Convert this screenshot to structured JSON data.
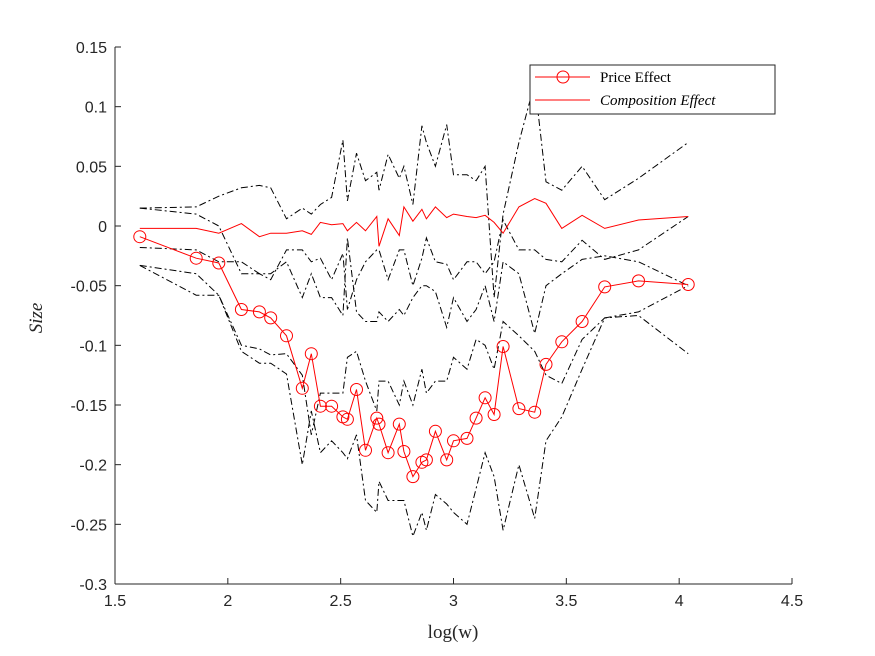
{
  "chart_data": {
    "type": "line",
    "xlabel": "log(w)",
    "ylabel": "Size",
    "xlim": [
      1.5,
      4.5
    ],
    "ylim": [
      -0.3,
      0.15
    ],
    "xticks": [
      1.5,
      2,
      2.5,
      3,
      3.5,
      4,
      4.5
    ],
    "yticks": [
      -0.3,
      -0.25,
      -0.2,
      -0.15,
      -0.1,
      -0.05,
      0,
      0.05,
      0.1,
      0.15
    ],
    "xtick_labels": [
      "1.5",
      "2",
      "2.5",
      "3",
      "3.5",
      "4",
      "4.5"
    ],
    "ytick_labels": [
      "-0.3",
      "-0.25",
      "-0.2",
      "-0.15",
      "-0.1",
      "-0.05",
      "0",
      "0.05",
      "0.1",
      "0.15"
    ],
    "grid": false,
    "legend_position": "top-right",
    "x": [
      1.61,
      1.86,
      1.96,
      2.06,
      2.14,
      2.19,
      2.26,
      2.33,
      2.37,
      2.41,
      2.46,
      2.51,
      2.53,
      2.57,
      2.61,
      2.66,
      2.67,
      2.71,
      2.76,
      2.78,
      2.82,
      2.86,
      2.88,
      2.92,
      2.97,
      3.0,
      3.06,
      3.1,
      3.14,
      3.18,
      3.22,
      3.29,
      3.36,
      3.41,
      3.48,
      3.57,
      3.67,
      3.82,
      4.04
    ],
    "series": [
      {
        "name": "Price Effect",
        "color": "#ff0000",
        "marker": "circle",
        "values": [
          -0.009,
          -0.027,
          -0.031,
          -0.07,
          -0.072,
          -0.077,
          -0.092,
          -0.136,
          -0.107,
          -0.151,
          -0.151,
          -0.16,
          -0.162,
          -0.137,
          -0.188,
          -0.161,
          -0.166,
          -0.19,
          -0.166,
          -0.189,
          -0.21,
          -0.198,
          -0.196,
          -0.172,
          -0.196,
          -0.18,
          -0.178,
          -0.161,
          -0.144,
          -0.158,
          -0.101,
          -0.153,
          -0.156,
          -0.116,
          -0.097,
          -0.08,
          -0.051,
          -0.046,
          -0.049
        ]
      },
      {
        "name": "Composition Effect",
        "color": "#ff0000",
        "marker": "none",
        "values": [
          -0.002,
          -0.002,
          -0.006,
          0.002,
          -0.009,
          -0.006,
          -0.006,
          -0.004,
          -0.007,
          0.003,
          0.001,
          0.002,
          -0.004,
          0.003,
          -0.004,
          0.008,
          -0.017,
          0.006,
          -0.008,
          0.016,
          0.004,
          0.014,
          0.006,
          0.016,
          0.007,
          0.01,
          0.008,
          0.007,
          0.009,
          0.003,
          -0.006,
          0.016,
          0.023,
          0.019,
          -0.002,
          0.009,
          -0.002,
          0.005,
          0.008
        ]
      },
      {
        "color": "#000000",
        "dash": "dash-dot",
        "values": [
          0.015,
          0.016,
          0.025,
          0.032,
          0.034,
          0.032,
          0.006,
          0.015,
          0.01,
          0.018,
          0.024,
          0.072,
          0.021,
          0.061,
          0.038,
          0.045,
          0.03,
          0.06,
          0.04,
          0.05,
          0.018,
          0.084,
          0.07,
          0.05,
          0.085,
          0.043,
          0.043,
          0.038,
          0.05,
          -0.06,
          0.01,
          0.07,
          0.12,
          0.037,
          0.03,
          0.05,
          0.022,
          0.04,
          0.07
        ]
      },
      {
        "color": "#000000",
        "dash": "dash-dot",
        "values": [
          0.015,
          0.01,
          0.0,
          -0.04,
          -0.04,
          -0.045,
          -0.02,
          -0.02,
          -0.03,
          -0.027,
          -0.045,
          -0.023,
          -0.07,
          -0.045,
          -0.03,
          -0.02,
          -0.02,
          -0.045,
          -0.02,
          -0.02,
          -0.05,
          -0.027,
          -0.01,
          -0.03,
          -0.032,
          -0.045,
          -0.03,
          -0.03,
          -0.04,
          -0.03,
          0.005,
          -0.02,
          -0.02,
          -0.028,
          -0.03,
          -0.012,
          -0.028,
          -0.02,
          0.008
        ]
      },
      {
        "color": "#000000",
        "dash": "dash-dot",
        "values": [
          -0.018,
          -0.02,
          -0.03,
          -0.03,
          -0.04,
          -0.04,
          -0.03,
          -0.06,
          -0.04,
          -0.06,
          -0.06,
          -0.075,
          -0.01,
          -0.072,
          -0.08,
          -0.08,
          -0.072,
          -0.08,
          -0.07,
          -0.075,
          -0.06,
          -0.05,
          -0.05,
          -0.055,
          -0.085,
          -0.06,
          -0.08,
          -0.07,
          -0.05,
          -0.08,
          -0.03,
          -0.04,
          -0.09,
          -0.05,
          -0.04,
          -0.028,
          -0.025,
          -0.03,
          -0.05
        ]
      },
      {
        "color": "#000000",
        "dash": "dash-dot",
        "values": [
          -0.033,
          -0.058,
          -0.058,
          -0.1,
          -0.103,
          -0.108,
          -0.107,
          -0.125,
          -0.175,
          -0.14,
          -0.14,
          -0.14,
          -0.11,
          -0.105,
          -0.13,
          -0.155,
          -0.13,
          -0.13,
          -0.15,
          -0.13,
          -0.15,
          -0.12,
          -0.14,
          -0.13,
          -0.13,
          -0.11,
          -0.12,
          -0.095,
          -0.1,
          -0.12,
          -0.08,
          -0.092,
          -0.105,
          -0.125,
          -0.132,
          -0.095,
          -0.077,
          -0.075,
          -0.107
        ]
      },
      {
        "color": "#000000",
        "dash": "dash-dot",
        "values": [
          -0.033,
          -0.04,
          -0.058,
          -0.105,
          -0.115,
          -0.115,
          -0.124,
          -0.2,
          -0.155,
          -0.19,
          -0.18,
          -0.19,
          -0.195,
          -0.175,
          -0.23,
          -0.24,
          -0.214,
          -0.23,
          -0.23,
          -0.23,
          -0.26,
          -0.24,
          -0.255,
          -0.225,
          -0.233,
          -0.24,
          -0.25,
          -0.22,
          -0.19,
          -0.21,
          -0.255,
          -0.2,
          -0.245,
          -0.18,
          -0.16,
          -0.12,
          -0.077,
          -0.072,
          -0.05
        ]
      }
    ]
  }
}
